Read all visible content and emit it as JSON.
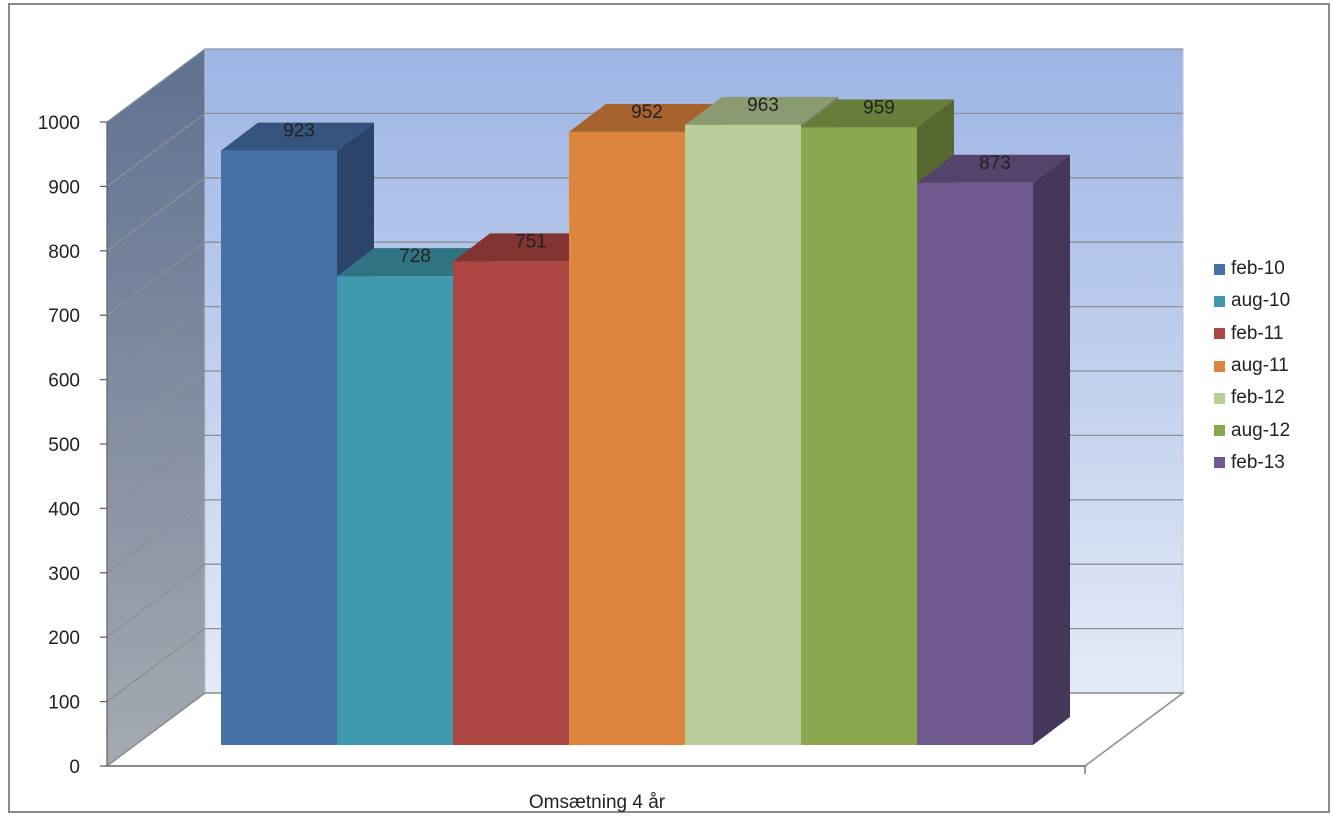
{
  "chart_data": {
    "type": "bar",
    "categories": [
      "Omsætning 4 år"
    ],
    "series": [
      {
        "name": "feb-10",
        "values": [
          923
        ],
        "color": "#4670a8"
      },
      {
        "name": "aug-10",
        "values": [
          728
        ],
        "color": "#409aaf"
      },
      {
        "name": "feb-11",
        "values": [
          751
        ],
        "color": "#ad4542"
      },
      {
        "name": "aug-11",
        "values": [
          952
        ],
        "color": "#dd843d"
      },
      {
        "name": "feb-12",
        "values": [
          963
        ],
        "color": "#bbcd98"
      },
      {
        "name": "aug-12",
        "values": [
          959
        ],
        "color": "#8aa74d"
      },
      {
        "name": "feb-13",
        "values": [
          873
        ],
        "color": "#70598f"
      }
    ],
    "y_ticks": [
      "0",
      "100",
      "200",
      "300",
      "400",
      "500",
      "600",
      "700",
      "800",
      "900",
      "1000"
    ],
    "ylim": [
      0,
      1000
    ],
    "data_labels": true,
    "grid": true,
    "legend": "right",
    "three_d": true
  }
}
